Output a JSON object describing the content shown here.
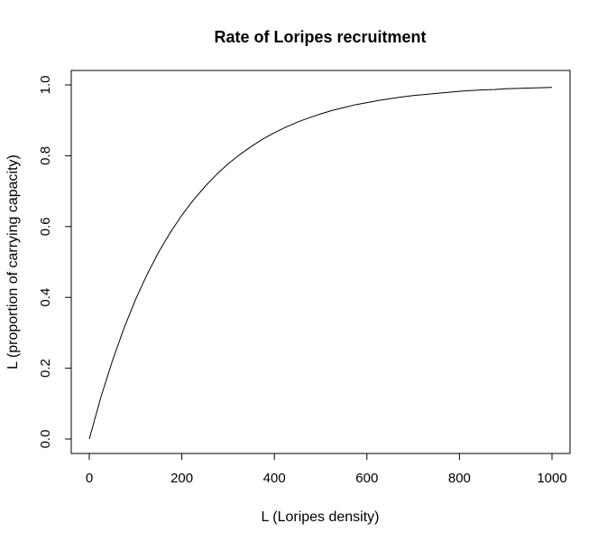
{
  "chart_data": {
    "type": "line",
    "title": "Rate of Loripes recruitment",
    "xlabel": "L (Loripes density)",
    "ylabel": "L (proportion of carrying capacity)",
    "xlim": [
      0,
      1000
    ],
    "ylim": [
      0.0,
      1.0
    ],
    "x_ticks": [
      0,
      200,
      400,
      600,
      800,
      1000
    ],
    "x_tick_labels": [
      "0",
      "200",
      "400",
      "600",
      "800",
      "1000"
    ],
    "y_ticks": [
      0.0,
      0.2,
      0.4,
      0.6,
      0.8,
      1.0
    ],
    "y_tick_labels": [
      "0.0",
      "0.2",
      "0.4",
      "0.6",
      "0.8",
      "1.0"
    ],
    "grid": false,
    "series": [
      {
        "color": "#000000",
        "x": [
          0,
          25,
          50,
          75,
          100,
          125,
          150,
          175,
          200,
          225,
          250,
          275,
          300,
          325,
          350,
          375,
          400,
          425,
          450,
          475,
          500,
          525,
          550,
          575,
          600,
          625,
          650,
          675,
          700,
          725,
          750,
          775,
          800,
          825,
          850,
          875,
          900,
          925,
          950,
          975,
          1000
        ],
        "y": [
          0.0,
          0.118,
          0.221,
          0.313,
          0.394,
          0.465,
          0.528,
          0.583,
          0.632,
          0.675,
          0.713,
          0.747,
          0.777,
          0.803,
          0.826,
          0.847,
          0.865,
          0.881,
          0.895,
          0.907,
          0.918,
          0.928,
          0.936,
          0.944,
          0.95,
          0.956,
          0.961,
          0.966,
          0.97,
          0.973,
          0.976,
          0.979,
          0.982,
          0.984,
          0.986,
          0.987,
          0.989,
          0.99,
          0.991,
          0.992,
          0.993
        ]
      }
    ]
  }
}
